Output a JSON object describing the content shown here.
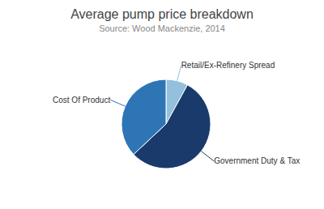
{
  "chart_data": {
    "type": "pie",
    "title": "Average pump price breakdown",
    "subtitle": "Source: Wood Mackenzie, 2014",
    "categories": [
      "Retail/Ex-Refinery Spread",
      "Government Duty & Tax",
      "Cost Of Product"
    ],
    "values": [
      8,
      55,
      37
    ],
    "colors": [
      "#92c0dd",
      "#1a3a6b",
      "#2e75b6"
    ]
  }
}
